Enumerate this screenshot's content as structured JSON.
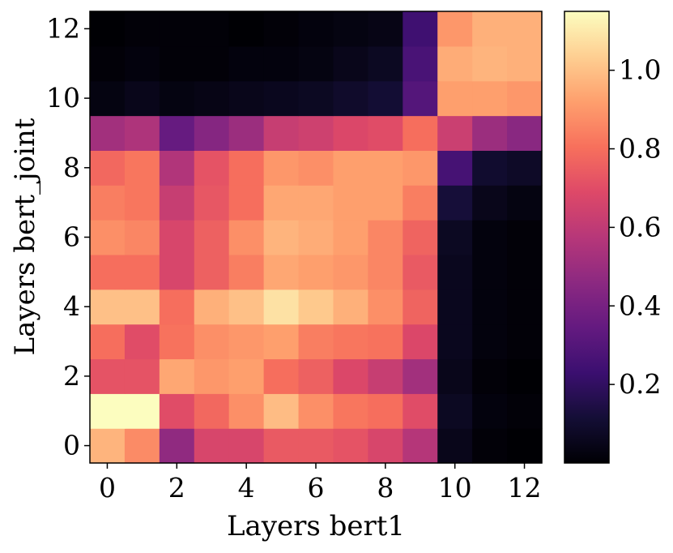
{
  "chart_data": {
    "type": "heatmap",
    "title": "",
    "xlabel": "Layers bert1",
    "ylabel": "Layers bert_joint",
    "x_categories": [
      0,
      1,
      2,
      3,
      4,
      5,
      6,
      7,
      8,
      9,
      10,
      11,
      12
    ],
    "y_categories": [
      0,
      1,
      2,
      3,
      4,
      5,
      6,
      7,
      8,
      9,
      10,
      11,
      12
    ],
    "x_ticks": [
      "0",
      "2",
      "4",
      "6",
      "8",
      "10",
      "12"
    ],
    "y_ticks": [
      "0",
      "2",
      "4",
      "6",
      "8",
      "10",
      "12"
    ],
    "colorbar": {
      "colormap": "magma",
      "vmin": 0.0,
      "vmax": 1.15,
      "ticks": [
        "0.2",
        "0.4",
        "0.6",
        "0.8",
        "1.0"
      ],
      "tick_values": [
        0.2,
        0.4,
        0.6,
        0.8,
        1.0
      ]
    },
    "grid": false,
    "legend": "colorbar-right",
    "values_rows_bottom_to_top": [
      [
        0.97,
        0.87,
        0.47,
        0.67,
        0.67,
        0.74,
        0.74,
        0.72,
        0.67,
        0.57,
        0.05,
        0.01,
        0.0
      ],
      [
        1.15,
        1.15,
        0.7,
        0.78,
        0.88,
        0.99,
        0.88,
        0.82,
        0.8,
        0.7,
        0.07,
        0.02,
        0.01
      ],
      [
        0.72,
        0.72,
        0.94,
        0.9,
        0.92,
        0.8,
        0.76,
        0.68,
        0.62,
        0.52,
        0.05,
        0.01,
        0.0
      ],
      [
        0.8,
        0.7,
        0.81,
        0.88,
        0.9,
        0.92,
        0.84,
        0.82,
        0.81,
        0.68,
        0.06,
        0.02,
        0.01
      ],
      [
        1.0,
        1.0,
        0.8,
        0.96,
        1.0,
        1.08,
        1.02,
        0.96,
        0.88,
        0.77,
        0.06,
        0.02,
        0.01
      ],
      [
        0.8,
        0.8,
        0.67,
        0.76,
        0.84,
        0.94,
        0.92,
        0.9,
        0.86,
        0.74,
        0.06,
        0.02,
        0.01
      ],
      [
        0.88,
        0.86,
        0.67,
        0.76,
        0.88,
        0.97,
        0.95,
        0.92,
        0.86,
        0.77,
        0.07,
        0.02,
        0.01
      ],
      [
        0.84,
        0.82,
        0.62,
        0.73,
        0.8,
        0.94,
        0.94,
        0.92,
        0.92,
        0.84,
        0.12,
        0.05,
        0.03
      ],
      [
        0.78,
        0.82,
        0.56,
        0.72,
        0.8,
        0.9,
        0.88,
        0.92,
        0.92,
        0.9,
        0.26,
        0.1,
        0.08
      ],
      [
        0.52,
        0.55,
        0.35,
        0.44,
        0.5,
        0.62,
        0.64,
        0.68,
        0.7,
        0.8,
        0.63,
        0.5,
        0.45
      ],
      [
        0.03,
        0.05,
        0.03,
        0.04,
        0.05,
        0.06,
        0.07,
        0.09,
        0.11,
        0.3,
        0.92,
        0.92,
        0.9
      ],
      [
        0.01,
        0.02,
        0.01,
        0.01,
        0.02,
        0.02,
        0.03,
        0.05,
        0.07,
        0.27,
        0.95,
        0.97,
        0.96
      ],
      [
        0.0,
        0.01,
        0.01,
        0.01,
        0.0,
        0.01,
        0.02,
        0.03,
        0.04,
        0.24,
        0.9,
        0.96,
        0.96
      ]
    ]
  }
}
